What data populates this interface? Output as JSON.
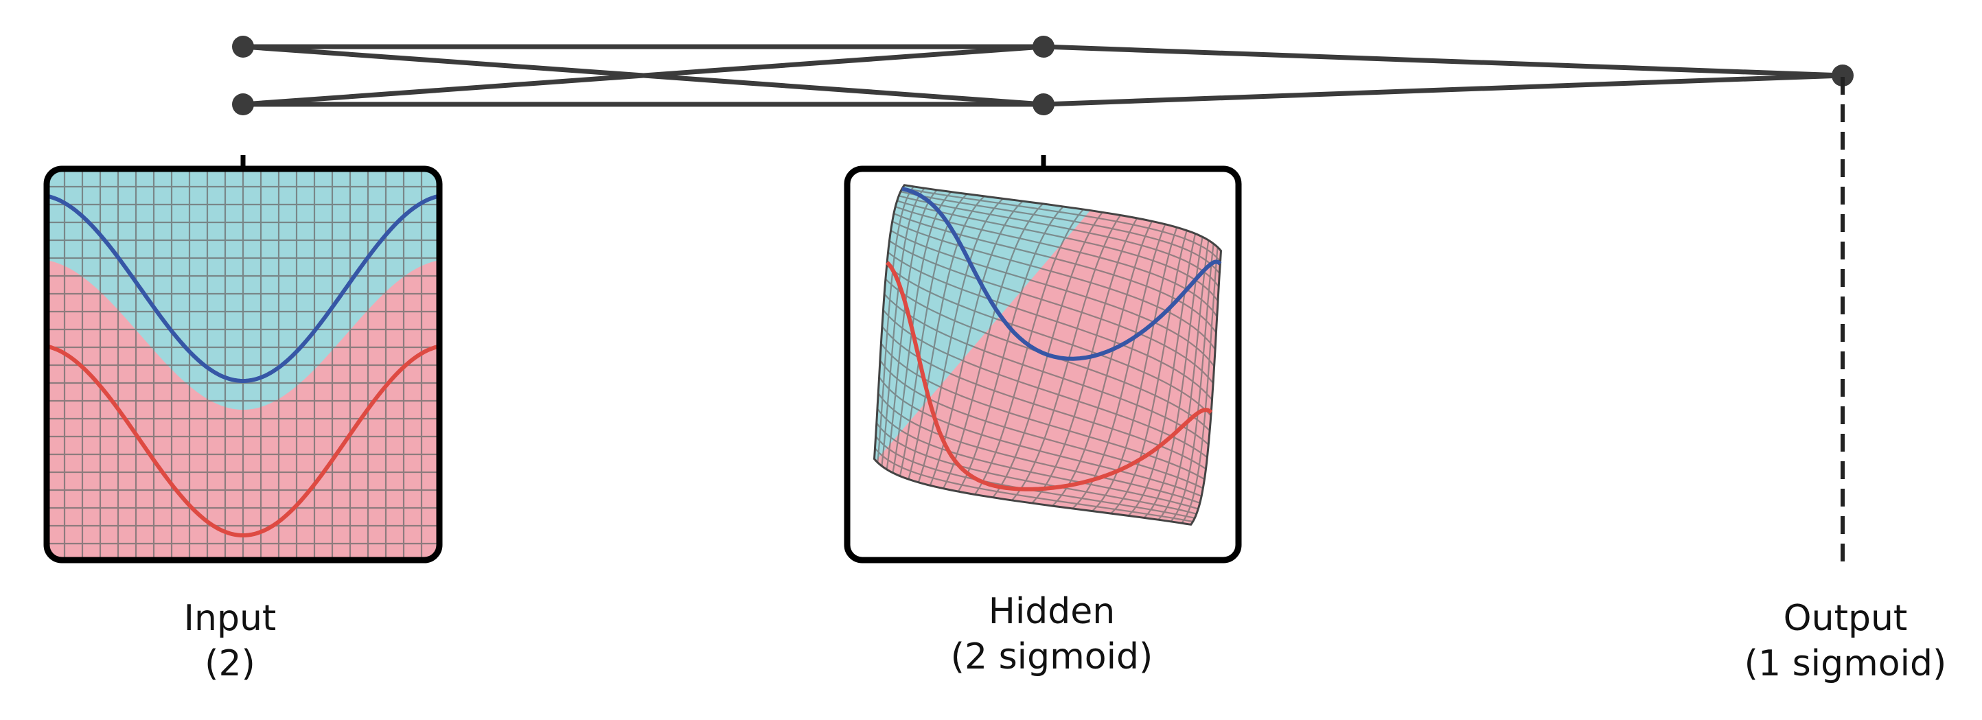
{
  "colors": {
    "region_top": "#9fd8dd",
    "region_bottom": "#f2a9b3",
    "grid": "#6d6d6d",
    "curve_blue": "#3656a6",
    "curve_red": "#de4a42",
    "network": "#3b3b3b",
    "frame": "#000000"
  },
  "layers": [
    {
      "id": "input",
      "title": "Input",
      "subtitle": "(2)",
      "units": 2
    },
    {
      "id": "hidden",
      "title": "Hidden",
      "subtitle": "(2 sigmoid)",
      "units": 2
    },
    {
      "id": "output",
      "title": "Output",
      "subtitle": "(1 sigmoid)",
      "units": 1
    }
  ],
  "icons": {
    "node": "filled-circle",
    "input_panel": "grid-plot-icon",
    "hidden_panel": "warped-grid-plot-icon"
  }
}
